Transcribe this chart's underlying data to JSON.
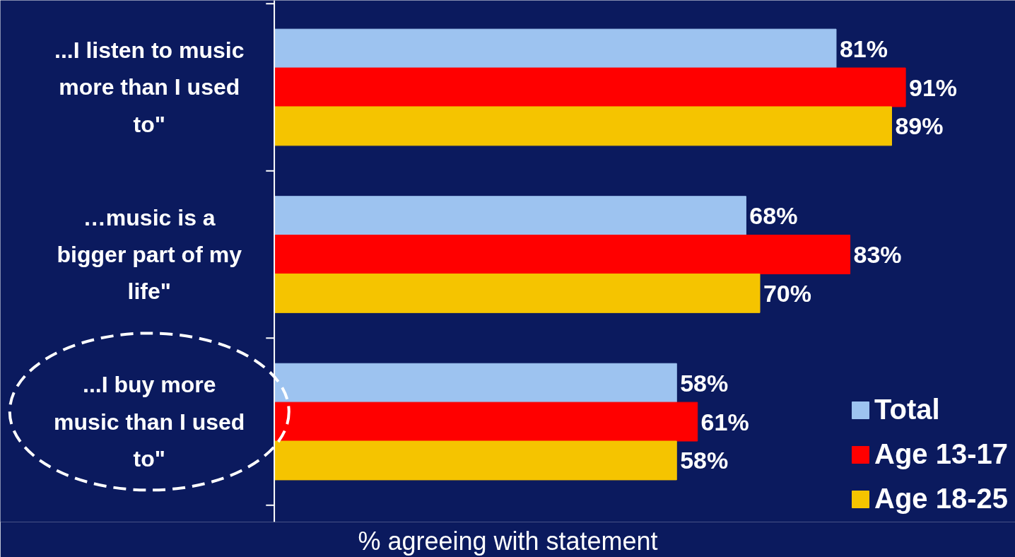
{
  "chart_data": {
    "type": "bar",
    "orientation": "horizontal",
    "xlabel": "% agreeing with statement",
    "categories": [
      "...I listen to music\nmore than I used\nto\"",
      "…music is a\nbigger part of my\nlife\"",
      "...I buy more\nmusic than I used\nto\""
    ],
    "series": [
      {
        "name": "Total",
        "color": "#9dc3f0",
        "values": [
          81,
          68,
          58
        ],
        "value_labels": [
          "81%",
          "68%",
          "58%"
        ]
      },
      {
        "name": "Age 13-17",
        "color": "#ff0000",
        "values": [
          91,
          83,
          61
        ],
        "value_labels": [
          "91%",
          "83%",
          "61%"
        ]
      },
      {
        "name": "Age 18-25",
        "color": "#f5c400",
        "values": [
          89,
          70,
          58
        ],
        "value_labels": [
          "89%",
          "70%",
          "58%"
        ]
      }
    ],
    "tick_labels": "y",
    "legend": "bottom right",
    "grid": false
  }
}
